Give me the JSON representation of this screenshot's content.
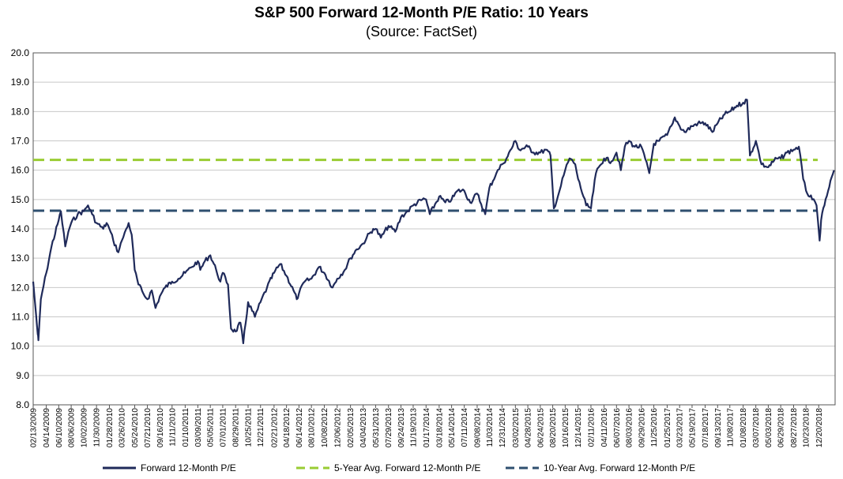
{
  "chart_data": {
    "type": "line",
    "title": "S&P 500 Forward 12-Month P/E Ratio: 10 Years",
    "subtitle": "(Source: FactSet)",
    "xlabel": "",
    "ylabel": "",
    "ylim": [
      8.0,
      20.0
    ],
    "y_ticks": [
      "20.0",
      "19.0",
      "18.0",
      "17.0",
      "16.0",
      "15.0",
      "14.0",
      "13.0",
      "12.0",
      "11.0",
      "10.0",
      "9.0",
      "8.0"
    ],
    "x_tick_labels": [
      "02/13/2009",
      "04/14/2009",
      "06/10/2009",
      "08/06/2009",
      "10/02/2009",
      "11/30/2009",
      "01/28/2010",
      "03/26/2010",
      "05/24/2010",
      "07/21/2010",
      "09/16/2010",
      "11/11/2010",
      "01/10/2011",
      "03/09/2011",
      "05/05/2011",
      "07/01/2011",
      "08/29/2011",
      "10/25/2011",
      "12/21/2011",
      "02/21/2012",
      "04/18/2012",
      "06/14/2012",
      "08/10/2012",
      "10/08/2012",
      "12/06/2012",
      "02/05/2013",
      "04/04/2013",
      "05/31/2013",
      "07/29/2013",
      "09/24/2013",
      "11/19/2013",
      "01/17/2014",
      "03/18/2014",
      "05/14/2014",
      "07/11/2014",
      "09/08/2014",
      "11/03/2014",
      "12/31/2014",
      "03/02/2015",
      "04/28/2015",
      "06/24/2015",
      "08/20/2015",
      "10/16/2015",
      "12/14/2015",
      "02/11/2016",
      "04/11/2016",
      "06/07/2016",
      "08/03/2016",
      "09/29/2016",
      "11/25/2016",
      "01/25/2017",
      "03/23/2017",
      "05/19/2017",
      "07/18/2017",
      "09/13/2017",
      "11/08/2017",
      "01/08/2018",
      "03/07/2018",
      "05/03/2018",
      "06/29/2018",
      "08/27/2018",
      "10/23/2018",
      "12/20/2018"
    ],
    "gridlines": "horizontal",
    "legend_position": "bottom",
    "series": [
      {
        "name": "Forward 12-Month P/E",
        "color": "#1f2a5a",
        "style": "solid",
        "points": [
          [
            "02/13/2009",
            12.2
          ],
          [
            "02/27/2009",
            11.0
          ],
          [
            "03/06/2009",
            10.4
          ],
          [
            "03/09/2009",
            10.2
          ],
          [
            "03/20/2009",
            11.6
          ],
          [
            "04/14/2009",
            12.5
          ],
          [
            "05/08/2009",
            13.4
          ],
          [
            "06/10/2009",
            14.3
          ],
          [
            "06/20/2009",
            14.6
          ],
          [
            "07/10/2009",
            13.4
          ],
          [
            "07/24/2009",
            13.9
          ],
          [
            "08/06/2009",
            14.2
          ],
          [
            "09/05/2009",
            14.5
          ],
          [
            "10/02/2009",
            14.6
          ],
          [
            "10/22/2009",
            14.8
          ],
          [
            "11/10/2009",
            14.5
          ],
          [
            "11/30/2009",
            14.2
          ],
          [
            "12/31/2009",
            14.0
          ],
          [
            "01/15/2010",
            14.2
          ],
          [
            "01/28/2010",
            14.0
          ],
          [
            "02/15/2010",
            13.6
          ],
          [
            "03/10/2010",
            13.2
          ],
          [
            "03/26/2010",
            13.6
          ],
          [
            "04/15/2010",
            14.0
          ],
          [
            "04/26/2010",
            14.2
          ],
          [
            "05/10/2010",
            13.8
          ],
          [
            "05/24/2010",
            12.6
          ],
          [
            "06/10/2010",
            12.1
          ],
          [
            "07/02/2010",
            11.8
          ],
          [
            "07/21/2010",
            11.6
          ],
          [
            "08/10/2010",
            11.9
          ],
          [
            "08/27/2010",
            11.3
          ],
          [
            "09/16/2010",
            11.7
          ],
          [
            "10/10/2010",
            12.0
          ],
          [
            "11/11/2010",
            12.2
          ],
          [
            "12/10/2010",
            12.3
          ],
          [
            "01/10/2011",
            12.5
          ],
          [
            "02/10/2011",
            12.7
          ],
          [
            "03/09/2011",
            12.9
          ],
          [
            "03/20/2011",
            12.6
          ],
          [
            "04/10/2011",
            12.9
          ],
          [
            "05/05/2011",
            13.1
          ],
          [
            "06/01/2011",
            12.6
          ],
          [
            "06/20/2011",
            12.2
          ],
          [
            "07/01/2011",
            12.5
          ],
          [
            "07/25/2011",
            12.1
          ],
          [
            "08/08/2011",
            10.6
          ],
          [
            "08/29/2011",
            10.5
          ],
          [
            "09/20/2011",
            10.8
          ],
          [
            "10/03/2011",
            10.1
          ],
          [
            "10/25/2011",
            11.5
          ],
          [
            "11/25/2011",
            11.0
          ],
          [
            "12/21/2011",
            11.5
          ],
          [
            "01/20/2012",
            12.0
          ],
          [
            "02/21/2012",
            12.5
          ],
          [
            "03/20/2012",
            12.8
          ],
          [
            "04/18/2012",
            12.4
          ],
          [
            "05/20/2012",
            11.9
          ],
          [
            "06/04/2012",
            11.6
          ],
          [
            "06/14/2012",
            11.8
          ],
          [
            "07/10/2012",
            12.2
          ],
          [
            "08/10/2012",
            12.3
          ],
          [
            "09/14/2012",
            12.7
          ],
          [
            "10/08/2012",
            12.5
          ],
          [
            "11/15/2012",
            12.0
          ],
          [
            "12/06/2012",
            12.3
          ],
          [
            "01/10/2013",
            12.6
          ],
          [
            "02/05/2013",
            13.0
          ],
          [
            "03/05/2013",
            13.3
          ],
          [
            "04/04/2013",
            13.5
          ],
          [
            "04/20/2013",
            13.7
          ],
          [
            "05/20/2013",
            14.0
          ],
          [
            "05/31/2013",
            14.0
          ],
          [
            "06/24/2013",
            13.7
          ],
          [
            "07/29/2013",
            14.1
          ],
          [
            "08/29/2013",
            13.9
          ],
          [
            "09/24/2013",
            14.4
          ],
          [
            "10/25/2013",
            14.6
          ],
          [
            "11/19/2013",
            14.8
          ],
          [
            "12/31/2013",
            15.0
          ],
          [
            "01/17/2014",
            15.0
          ],
          [
            "02/03/2014",
            14.5
          ],
          [
            "03/18/2014",
            15.1
          ],
          [
            "04/15/2014",
            14.9
          ],
          [
            "05/14/2014",
            15.0
          ],
          [
            "06/10/2014",
            15.3
          ],
          [
            "07/11/2014",
            15.3
          ],
          [
            "08/07/2014",
            14.9
          ],
          [
            "09/08/2014",
            15.2
          ],
          [
            "10/15/2014",
            14.5
          ],
          [
            "11/03/2014",
            15.4
          ],
          [
            "12/05/2014",
            15.9
          ],
          [
            "12/31/2014",
            16.2
          ],
          [
            "01/20/2015",
            16.4
          ],
          [
            "03/02/2015",
            17.0
          ],
          [
            "03/20/2015",
            16.7
          ],
          [
            "04/28/2015",
            16.8
          ],
          [
            "05/25/2015",
            16.6
          ],
          [
            "06/24/2015",
            16.6
          ],
          [
            "07/20/2015",
            16.7
          ],
          [
            "08/10/2015",
            16.5
          ],
          [
            "08/25/2015",
            14.7
          ],
          [
            "09/20/2015",
            15.3
          ],
          [
            "10/16/2015",
            16.0
          ],
          [
            "11/05/2015",
            16.4
          ],
          [
            "12/01/2015",
            16.2
          ],
          [
            "12/14/2015",
            15.7
          ],
          [
            "01/20/2016",
            14.8
          ],
          [
            "02/11/2016",
            14.7
          ],
          [
            "03/05/2016",
            15.9
          ],
          [
            "04/11/2016",
            16.4
          ],
          [
            "05/15/2016",
            16.3
          ],
          [
            "06/07/2016",
            16.6
          ],
          [
            "06/27/2016",
            16.0
          ],
          [
            "07/15/2016",
            16.8
          ],
          [
            "08/03/2016",
            17.0
          ],
          [
            "08/30/2016",
            16.8
          ],
          [
            "09/29/2016",
            16.8
          ],
          [
            "11/04/2016",
            15.9
          ],
          [
            "11/25/2016",
            16.9
          ],
          [
            "12/20/2016",
            17.0
          ],
          [
            "01/25/2017",
            17.2
          ],
          [
            "02/20/2017",
            17.6
          ],
          [
            "03/01/2017",
            17.8
          ],
          [
            "03/23/2017",
            17.5
          ],
          [
            "04/15/2017",
            17.3
          ],
          [
            "05/19/2017",
            17.5
          ],
          [
            "06/15/2017",
            17.6
          ],
          [
            "07/18/2017",
            17.6
          ],
          [
            "08/20/2017",
            17.3
          ],
          [
            "09/13/2017",
            17.6
          ],
          [
            "10/15/2017",
            17.9
          ],
          [
            "11/08/2017",
            18.0
          ],
          [
            "12/10/2017",
            18.2
          ],
          [
            "01/08/2018",
            18.3
          ],
          [
            "01/26/2018",
            18.4
          ],
          [
            "02/08/2018",
            16.5
          ],
          [
            "03/07/2018",
            17.0
          ],
          [
            "04/02/2018",
            16.2
          ],
          [
            "05/03/2018",
            16.1
          ],
          [
            "06/10/2018",
            16.4
          ],
          [
            "06/29/2018",
            16.4
          ],
          [
            "07/27/2018",
            16.6
          ],
          [
            "08/27/2018",
            16.7
          ],
          [
            "09/20/2018",
            16.8
          ],
          [
            "10/10/2018",
            15.7
          ],
          [
            "10/23/2018",
            15.3
          ],
          [
            "11/20/2018",
            15.0
          ],
          [
            "12/10/2018",
            14.8
          ],
          [
            "12/24/2018",
            13.6
          ],
          [
            "12/31/2018",
            14.3
          ],
          [
            "01/15/2019",
            14.8
          ],
          [
            "02/01/2019",
            15.3
          ],
          [
            "02/28/2019",
            16.0
          ]
        ]
      },
      {
        "name": "5-Year Avg. Forward 12-Month P/E",
        "color": "#99cc33",
        "style": "dashed",
        "value": 16.35
      },
      {
        "name": "10-Year Avg. Forward 12-Month P/E",
        "color": "#2f4f6f",
        "style": "dashed",
        "value": 14.62
      }
    ]
  }
}
